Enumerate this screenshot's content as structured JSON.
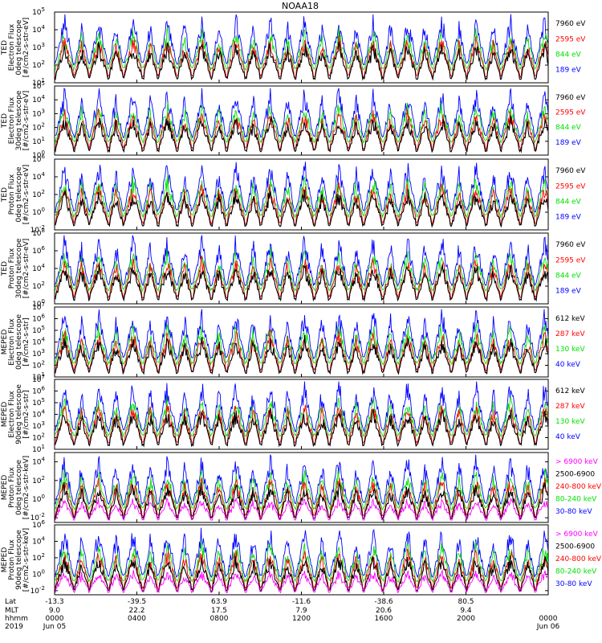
{
  "title": "NOAA18",
  "colors": {
    "black": "#000000",
    "red": "#ff0000",
    "green": "#00e000",
    "blue": "#0000ff",
    "magenta": "#ff00ff"
  },
  "panels": [
    {
      "id": "ted-e-0",
      "ylabel": [
        "TED",
        "Electron Flux",
        "0deg telescope",
        "[#/cm2-s-str-eV]"
      ],
      "yticks": [
        "10^1",
        "10^2",
        "10^3",
        "10^4",
        "10^5"
      ],
      "min_exp": 1,
      "max_exp": 5,
      "legend": [
        {
          "text": "7960 eV",
          "color": "black"
        },
        {
          "text": "2595 eV",
          "color": "red"
        },
        {
          "text": "844 eV",
          "color": "green"
        },
        {
          "text": "189 eV",
          "color": "blue"
        }
      ]
    },
    {
      "id": "ted-e-30",
      "ylabel": [
        "TED",
        "Electron Flux",
        "30deg telescope",
        "[#/cm2-s-str-eV]"
      ],
      "yticks": [
        "10^0",
        "10^1",
        "10^2",
        "10^3",
        "10^4",
        "10^5"
      ],
      "min_exp": 0,
      "max_exp": 5,
      "legend": [
        {
          "text": "7960 eV",
          "color": "black"
        },
        {
          "text": "2595 eV",
          "color": "red"
        },
        {
          "text": "844 eV",
          "color": "green"
        },
        {
          "text": "189 eV",
          "color": "blue"
        }
      ]
    },
    {
      "id": "ted-p-0",
      "ylabel": [
        "TED",
        "Proton Flux",
        "0deg telescope",
        "[#/cm2-s-str-eV]"
      ],
      "yticks": [
        "10^-2",
        "10^0",
        "10^2",
        "10^4",
        "10^6"
      ],
      "min_exp": -2,
      "max_exp": 6,
      "legend": [
        {
          "text": "7960 eV",
          "color": "black"
        },
        {
          "text": "2595 eV",
          "color": "red"
        },
        {
          "text": "844 eV",
          "color": "green"
        },
        {
          "text": "189 eV",
          "color": "blue"
        }
      ]
    },
    {
      "id": "ted-p-30",
      "ylabel": [
        "TED",
        "Proton Flux",
        "30deg telescope",
        "[#/cm2-s-str-eV]"
      ],
      "yticks": [
        "10^0",
        "10^2",
        "10^4",
        "10^6",
        "10^8"
      ],
      "min_exp": 0,
      "max_exp": 8,
      "legend": [
        {
          "text": "7960 eV",
          "color": "black"
        },
        {
          "text": "2595 eV",
          "color": "red"
        },
        {
          "text": "844 eV",
          "color": "green"
        },
        {
          "text": "189 eV",
          "color": "blue"
        }
      ]
    },
    {
      "id": "meped-e-0",
      "ylabel": [
        "MEPED",
        "Electron Flux",
        "0deg telescope",
        "[#/cm2-s-str]"
      ],
      "yticks": [
        "10^1",
        "10^2",
        "10^3",
        "10^4",
        "10^5",
        "10^6",
        "10^7"
      ],
      "min_exp": 1,
      "max_exp": 7,
      "legend": [
        {
          "text": "612 keV",
          "color": "black"
        },
        {
          "text": "287 keV",
          "color": "red"
        },
        {
          "text": "130 keV",
          "color": "green"
        },
        {
          "text": "40 keV",
          "color": "blue"
        }
      ]
    },
    {
      "id": "meped-e-90",
      "ylabel": [
        "MEPED",
        "Electron Flux",
        "90deg telescope",
        "[#/cm2-s-str]"
      ],
      "yticks": [
        "10^1",
        "10^2",
        "10^3",
        "10^4",
        "10^5",
        "10^6",
        "10^7"
      ],
      "min_exp": 1,
      "max_exp": 7,
      "legend": [
        {
          "text": "612 keV",
          "color": "black"
        },
        {
          "text": "287 keV",
          "color": "red"
        },
        {
          "text": "130 keV",
          "color": "green"
        },
        {
          "text": "40 keV",
          "color": "blue"
        }
      ]
    },
    {
      "id": "meped-p-0",
      "ylabel": [
        "MEPED",
        "Proton Flux",
        "0deg telescope",
        "[#/cm2-s-str-keV]"
      ],
      "yticks": [
        "10^-2",
        "10^0",
        "10^2",
        "10^4"
      ],
      "min_exp": -2.5,
      "max_exp": 5,
      "legend": [
        {
          "text": "> 6900 keV",
          "color": "magenta"
        },
        {
          "text": "2500-6900",
          "color": "black"
        },
        {
          "text": "240-800 keV",
          "color": "red"
        },
        {
          "text": "80-240 keV",
          "color": "green"
        },
        {
          "text": "30-80 keV",
          "color": "blue"
        }
      ]
    },
    {
      "id": "meped-p-90",
      "ylabel": [
        "MEPED",
        "Proton Flux",
        "90deg telescope",
        "[#/cm2-s-str-keV]"
      ],
      "yticks": [
        "10^-2",
        "10^0",
        "10^2",
        "10^4",
        "10^6"
      ],
      "min_exp": -2.5,
      "max_exp": 6,
      "legend": [
        {
          "text": "> 6900 keV",
          "color": "magenta"
        },
        {
          "text": "2500-6900",
          "color": "black"
        },
        {
          "text": "240-800 keV",
          "color": "red"
        },
        {
          "text": "80-240 keV",
          "color": "green"
        },
        {
          "text": "30-80 keV",
          "color": "blue"
        }
      ]
    }
  ],
  "xaxis": {
    "row_labels": [
      "Lat",
      "MLT",
      "hhmm",
      "2019"
    ],
    "ticks": [
      {
        "lat": "-13.3",
        "mlt": "9.0",
        "hhmm": "0000",
        "date": "Jun 05"
      },
      {
        "lat": "-39.5",
        "mlt": "22.2",
        "hhmm": "0400",
        "date": ""
      },
      {
        "lat": "63.9",
        "mlt": "17.5",
        "hhmm": "0800",
        "date": ""
      },
      {
        "lat": "-11.6",
        "mlt": "7.9",
        "hhmm": "1200",
        "date": ""
      },
      {
        "lat": "-38.6",
        "mlt": "20.6",
        "hhmm": "1600",
        "date": ""
      },
      {
        "lat": "80.5",
        "mlt": "9.4",
        "hhmm": "2000",
        "date": ""
      },
      {
        "lat": "",
        "mlt": "",
        "hhmm": "0000",
        "date": "Jun 06"
      }
    ]
  },
  "chart_data": {
    "type": "line",
    "title": "NOAA18",
    "x_range_hours": [
      0,
      24
    ],
    "y_scale": "log",
    "note_series": "Time series of particle flux from 8 instrument channels sampled over one day; curves are dense spiky traces."
  }
}
